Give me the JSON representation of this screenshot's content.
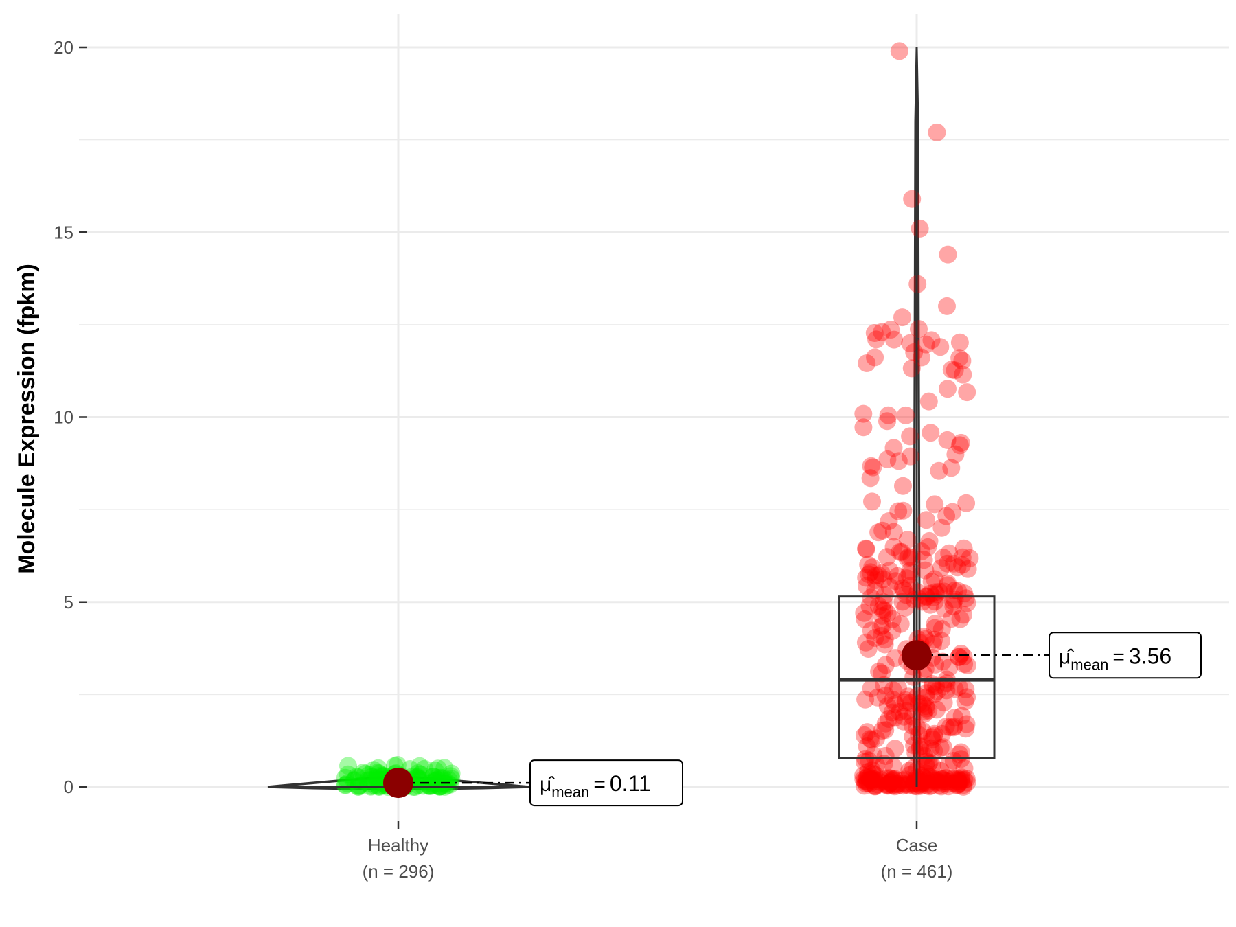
{
  "chart_data": {
    "type": "box-violin-jitter",
    "ylabel": "Molecule Expression (fpkm)",
    "xlabel": "",
    "ylim": [
      -1,
      21
    ],
    "yticks": [
      0,
      5,
      10,
      15,
      20
    ],
    "grid": true,
    "groups": [
      {
        "label_line1": "Healthy",
        "label_line2": "(n = 296)",
        "n": 296,
        "mean": 0.11,
        "mean_text": "0.11",
        "color": "#00ee00",
        "box": {
          "q1": 0.02,
          "median": 0.06,
          "q3": 0.14
        },
        "whisker": [
          0.0,
          0.35
        ],
        "points_range": [
          0.0,
          0.6
        ]
      },
      {
        "label_line1": "Case",
        "label_line2": "(n = 461)",
        "n": 461,
        "mean": 3.56,
        "mean_text": "3.56",
        "color": "#ff0000",
        "box": {
          "q1": 0.78,
          "median": 2.9,
          "q3": 5.15
        },
        "whisker": [
          0.0,
          20.0
        ],
        "points_range": [
          0.0,
          19.9
        ],
        "outliers": [
          19.9,
          17.7,
          15.9,
          15.1,
          14.4,
          13.6,
          13.0,
          12.7,
          12.3,
          12.1,
          12.0,
          11.9
        ]
      }
    ],
    "mean_label_prefix": "μ̂",
    "mean_label_sub": "mean",
    "mean_point_color": "#8b0000"
  }
}
